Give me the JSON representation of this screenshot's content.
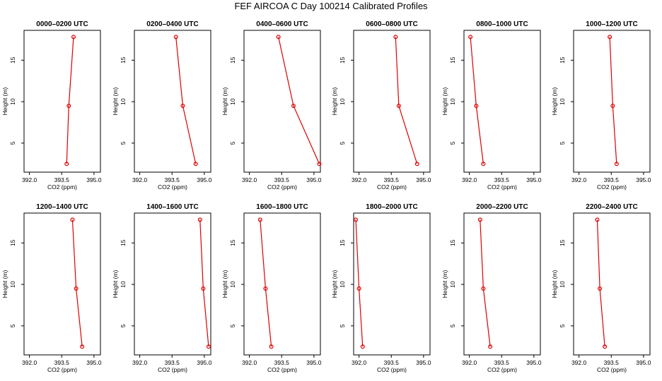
{
  "title": "FEF AIRCOA C  Day 100214  Calibrated Profiles",
  "colors": {
    "series": "#dd0000",
    "axis": "#000000"
  },
  "chart_data": [
    {
      "type": "line",
      "title": "0000–0200 UTC",
      "xlabel": "CO2 (ppm)",
      "ylabel": "Height (m)",
      "xlim": [
        391.75,
        395.3
      ],
      "ylim": [
        1.5,
        18.6
      ],
      "xticks": [
        "392.0",
        "393.5",
        "395.0"
      ],
      "yticks": [
        "5",
        "10",
        "15"
      ],
      "x": [
        393.73,
        393.83,
        394.05
      ],
      "y": [
        2.5,
        9.5,
        17.8
      ]
    },
    {
      "type": "line",
      "title": "0200–0400 UTC",
      "xlabel": "CO2 (ppm)",
      "ylabel": "Height (m)",
      "xlim": [
        391.75,
        395.3
      ],
      "ylim": [
        1.5,
        18.6
      ],
      "xticks": [
        "392.0",
        "393.5",
        "395.0"
      ],
      "yticks": [
        "5",
        "10",
        "15"
      ],
      "x": [
        393.68,
        394.0,
        394.6
      ],
      "y": [
        17.8,
        9.5,
        2.5
      ]
    },
    {
      "type": "line",
      "title": "0400–0600 UTC",
      "xlabel": "CO2 (ppm)",
      "ylabel": "Height (m)",
      "xlim": [
        391.75,
        395.3
      ],
      "ylim": [
        1.5,
        18.6
      ],
      "xticks": [
        "392.0",
        "393.5",
        "395.0"
      ],
      "yticks": [
        "5",
        "10",
        "15"
      ],
      "x": [
        393.35,
        394.05,
        395.25
      ],
      "y": [
        17.8,
        9.5,
        2.5
      ]
    },
    {
      "type": "line",
      "title": "0600–0800 UTC",
      "xlabel": "CO2 (ppm)",
      "ylabel": "Height (m)",
      "xlim": [
        391.75,
        395.3
      ],
      "ylim": [
        1.5,
        18.6
      ],
      "xticks": [
        "392.0",
        "393.5",
        "395.0"
      ],
      "yticks": [
        "5",
        "10",
        "15"
      ],
      "x": [
        393.7,
        393.85,
        394.7
      ],
      "y": [
        17.8,
        9.5,
        2.5
      ]
    },
    {
      "type": "line",
      "title": "0800–1000 UTC",
      "xlabel": "CO2 (ppm)",
      "ylabel": "Height (m)",
      "xlim": [
        391.75,
        395.3
      ],
      "ylim": [
        1.5,
        18.6
      ],
      "xticks": [
        "392.0",
        "393.5",
        "395.0"
      ],
      "yticks": [
        "5",
        "10",
        "15"
      ],
      "x": [
        392.05,
        392.32,
        392.65
      ],
      "y": [
        17.8,
        9.5,
        2.5
      ]
    },
    {
      "type": "line",
      "title": "1000–1200 UTC",
      "xlabel": "CO2 (ppm)",
      "ylabel": "Height (m)",
      "xlim": [
        391.75,
        395.3
      ],
      "ylim": [
        1.5,
        18.6
      ],
      "xticks": [
        "392.0",
        "393.5",
        "395.0"
      ],
      "yticks": [
        "5",
        "10",
        "15"
      ],
      "x": [
        393.43,
        393.57,
        393.75
      ],
      "y": [
        17.8,
        9.5,
        2.5
      ]
    },
    {
      "type": "line",
      "title": "1200–1400 UTC",
      "xlabel": "CO2 (ppm)",
      "ylabel": "Height (m)",
      "xlim": [
        391.75,
        395.3
      ],
      "ylim": [
        1.5,
        18.6
      ],
      "xticks": [
        "392.0",
        "393.5",
        "395.0"
      ],
      "yticks": [
        "5",
        "10",
        "15"
      ],
      "x": [
        394.0,
        394.17,
        394.45
      ],
      "y": [
        17.8,
        9.5,
        2.5
      ]
    },
    {
      "type": "line",
      "title": "1400–1600 UTC",
      "xlabel": "CO2 (ppm)",
      "ylabel": "Height (m)",
      "xlim": [
        391.75,
        395.3
      ],
      "ylim": [
        1.5,
        18.6
      ],
      "xticks": [
        "392.0",
        "393.5",
        "395.0"
      ],
      "yticks": [
        "5",
        "10",
        "15"
      ],
      "x": [
        394.8,
        394.95,
        395.2
      ],
      "y": [
        17.8,
        9.5,
        2.5
      ]
    },
    {
      "type": "line",
      "title": "1600–1800 UTC",
      "xlabel": "CO2 (ppm)",
      "ylabel": "Height (m)",
      "xlim": [
        391.75,
        395.3
      ],
      "ylim": [
        1.5,
        18.6
      ],
      "xticks": [
        "392.0",
        "393.5",
        "395.0"
      ],
      "yticks": [
        "5",
        "10",
        "15"
      ],
      "x": [
        392.5,
        392.75,
        393.02
      ],
      "y": [
        17.8,
        9.5,
        2.5
      ]
    },
    {
      "type": "line",
      "title": "1800–2000 UTC",
      "xlabel": "CO2 (ppm)",
      "ylabel": "Height (m)",
      "xlim": [
        391.75,
        395.3
      ],
      "ylim": [
        1.5,
        18.6
      ],
      "xticks": [
        "392.0",
        "393.5",
        "395.0"
      ],
      "yticks": [
        "5",
        "10",
        "15"
      ],
      "x": [
        391.85,
        392.0,
        392.17
      ],
      "y": [
        17.8,
        9.5,
        2.5
      ]
    },
    {
      "type": "line",
      "title": "2000–2200 UTC",
      "xlabel": "CO2 (ppm)",
      "ylabel": "Height (m)",
      "xlim": [
        391.75,
        395.3
      ],
      "ylim": [
        1.5,
        18.6
      ],
      "xticks": [
        "392.0",
        "393.5",
        "395.0"
      ],
      "yticks": [
        "5",
        "10",
        "15"
      ],
      "x": [
        392.5,
        392.65,
        392.97
      ],
      "y": [
        17.8,
        9.5,
        2.5
      ]
    },
    {
      "type": "line",
      "title": "2200–2400 UTC",
      "xlabel": "CO2 (ppm)",
      "ylabel": "Height (m)",
      "xlim": [
        391.75,
        395.3
      ],
      "ylim": [
        1.5,
        18.6
      ],
      "xticks": [
        "392.0",
        "393.5",
        "395.0"
      ],
      "yticks": [
        "5",
        "10",
        "15"
      ],
      "x": [
        392.85,
        392.97,
        393.2
      ],
      "y": [
        17.8,
        9.5,
        2.5
      ]
    }
  ]
}
